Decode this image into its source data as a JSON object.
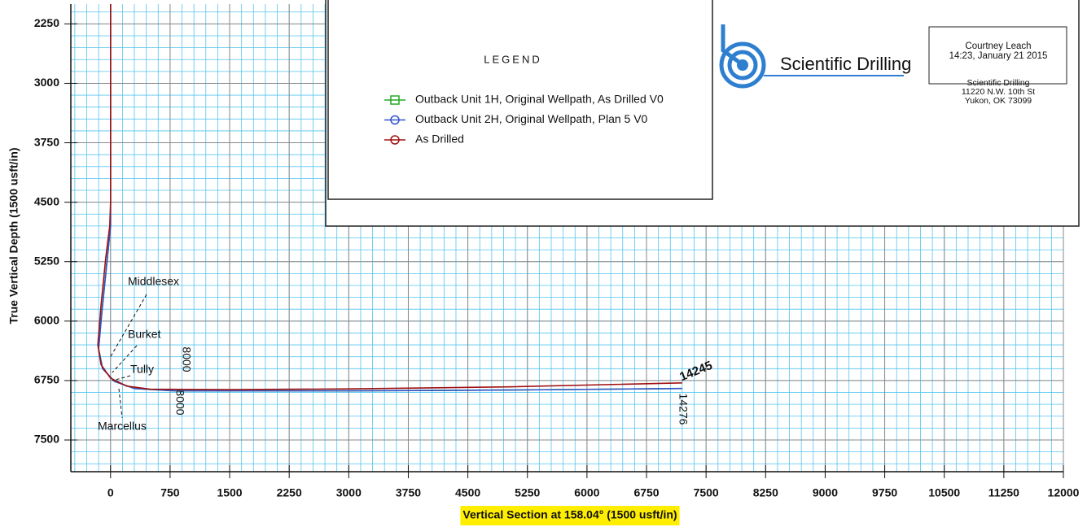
{
  "chart_data": {
    "type": "line",
    "y_axis_label": "True Vertical Depth (1500 usft/in)",
    "x_axis_label": "Vertical Section at 158.04° (1500 usft/in)",
    "xlim": [
      -500,
      12000
    ],
    "ylim": [
      7900,
      2000
    ],
    "xticks": [
      0,
      750,
      1500,
      2250,
      3000,
      3750,
      4500,
      5250,
      6000,
      6750,
      7500,
      8250,
      9000,
      9750,
      10500,
      11250,
      12000
    ],
    "yticks": [
      2250,
      3000,
      3750,
      4500,
      5250,
      6000,
      6750,
      7500
    ],
    "grid": true,
    "legend_title": "LEGEND",
    "series": [
      {
        "name": "Outback Unit 1H, Original Wellpath, As Drilled V0",
        "color": "#22aa22",
        "marker": "square",
        "x": [
          0,
          0,
          -50,
          -110,
          -150,
          -100,
          50,
          300,
          800,
          3000,
          5000,
          7200
        ],
        "values": [
          2000,
          4800,
          5300,
          5900,
          6350,
          6600,
          6760,
          6850,
          6880,
          6880,
          6870,
          6850
        ]
      },
      {
        "name": "Outback Unit 2H, Original Wellpath, Plan 5 V0",
        "color": "#3355cc",
        "marker": "circle",
        "x": [
          0,
          0,
          -50,
          -110,
          -150,
          -100,
          50,
          300,
          800,
          3000,
          5000,
          7200
        ],
        "values": [
          2000,
          4800,
          5300,
          5900,
          6350,
          6600,
          6760,
          6850,
          6880,
          6880,
          6870,
          6850
        ]
      },
      {
        "name": "As Drilled",
        "color": "#a01010",
        "marker": "circle",
        "x": [
          0,
          0,
          -10,
          -60,
          -120,
          -160,
          -120,
          0,
          200,
          500,
          1500,
          3000,
          5000,
          7200
        ],
        "values": [
          2000,
          4500,
          4800,
          5200,
          5800,
          6300,
          6550,
          6720,
          6820,
          6860,
          6865,
          6855,
          6830,
          6780
        ]
      }
    ],
    "annotations": [
      "Middlesex",
      "Burket",
      "Tully",
      "Marcellus",
      "8000",
      "8000",
      "14245",
      "14276"
    ],
    "company_logo_text": "Scientific Drilling",
    "info_box": [
      "Courtney Leach",
      "14:23, January 21 2015",
      "Scientific Drilling",
      "11220 N.W. 10th St",
      "Yukon, OK 73099"
    ]
  }
}
